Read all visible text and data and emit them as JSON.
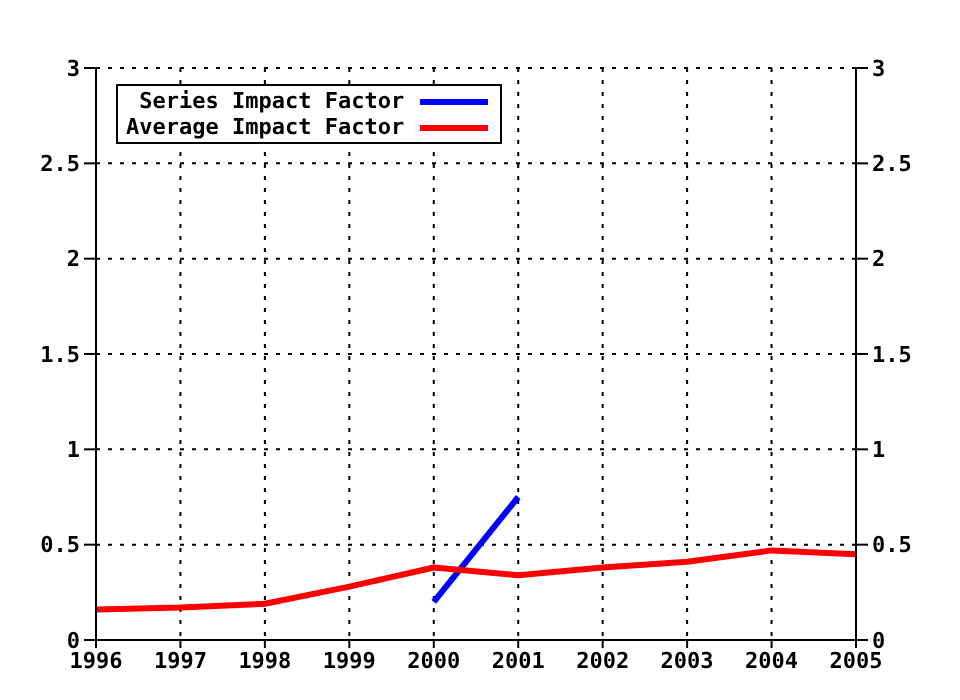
{
  "chart_data": {
    "type": "line",
    "x": [
      1996,
      1997,
      1998,
      1999,
      2000,
      2001,
      2002,
      2003,
      2004,
      2005
    ],
    "series": [
      {
        "name": "Series Impact Factor",
        "color": "#0000ff",
        "x": [
          2000,
          2001
        ],
        "values": [
          0.2,
          0.75
        ]
      },
      {
        "name": "Average Impact Factor",
        "color": "#ff0000",
        "values": [
          0.16,
          0.17,
          0.19,
          0.28,
          0.38,
          0.34,
          0.38,
          0.41,
          0.47,
          0.45
        ]
      }
    ],
    "xlim": [
      1996,
      2005
    ],
    "xticks": [
      1996,
      1997,
      1998,
      1999,
      2000,
      2001,
      2002,
      2003,
      2004,
      2005
    ],
    "ylim": [
      0,
      3
    ],
    "yticks": [
      0,
      {
        "value": 0.5,
        "label": "0.5"
      },
      1,
      {
        "value": 1.5,
        "label": "1.5"
      },
      2,
      {
        "value": 2.5,
        "label": "2.5"
      },
      3
    ],
    "y2lim": [
      0,
      3
    ],
    "y2ticks": [
      0,
      {
        "value": 0.5,
        "label": "0.5"
      },
      1,
      {
        "value": 1.5,
        "label": "1.5"
      },
      2,
      {
        "value": 2.5,
        "label": "2.5"
      },
      3
    ],
    "grid": true,
    "legend": "top left",
    "marker": "none",
    "line_style": "solid"
  }
}
